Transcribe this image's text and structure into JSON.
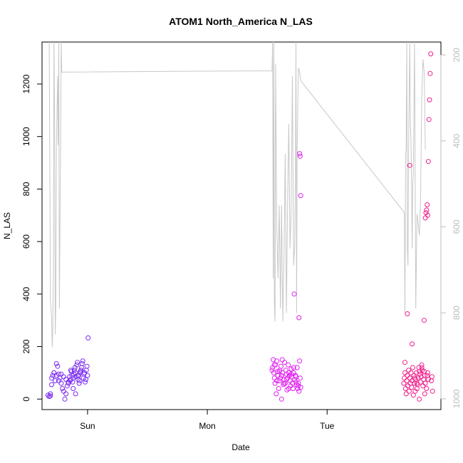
{
  "chart_data": {
    "type": "scatter",
    "title": "ATOM1 North_America N_LAS",
    "xlabel": "Date",
    "ylabel": "N_LAS",
    "x_ticks": [
      "Sun",
      "Mon",
      "Tue"
    ],
    "y_ticks": [
      "0",
      "200",
      "400",
      "600",
      "800",
      "1000",
      "1200"
    ],
    "y2_ticks": [
      "200",
      "400",
      "600",
      "800",
      "1000"
    ],
    "xlim": [
      -0.38,
      2.95
    ],
    "ylim": [
      -40,
      1360
    ],
    "y2lim": [
      1025,
      170
    ],
    "y2_reversed": true,
    "grid": false,
    "colors": {
      "line": "#c8c8c8",
      "axis_right": "#bdbdbd",
      "day1_points": "#7b2cf0",
      "day2_points": "#e020f0",
      "day3_points": "#f0208c"
    },
    "line_series": {
      "axis": "right",
      "x": [
        -0.32,
        -0.31,
        -0.3,
        -0.295,
        -0.29,
        -0.285,
        -0.28,
        -0.275,
        -0.27,
        -0.265,
        -0.26,
        -0.25,
        -0.245,
        -0.24,
        -0.235,
        -0.23,
        -0.225,
        -0.22,
        -0.215,
        1.54,
        1.545,
        1.55,
        1.555,
        1.56,
        1.565,
        1.57,
        1.58,
        1.59,
        1.6,
        1.61,
        1.62,
        1.63,
        1.64,
        1.65,
        1.66,
        1.67,
        1.68,
        1.69,
        1.7,
        1.71,
        1.72,
        1.73,
        1.735,
        1.74,
        1.745,
        1.75,
        1.76,
        1.77,
        1.78,
        2.64,
        2.645,
        2.65,
        2.655,
        2.66,
        2.665,
        2.67,
        2.675,
        2.68,
        2.69,
        2.695,
        2.7,
        2.705,
        2.71,
        2.715,
        2.72,
        2.73,
        2.74,
        2.75,
        2.76,
        2.77,
        2.78,
        2.79,
        2.8,
        2.81,
        2.82
      ],
      "y": [
        170,
        770,
        810,
        880,
        840,
        690,
        170,
        360,
        850,
        790,
        410,
        250,
        410,
        170,
        790,
        590,
        420,
        170,
        240,
        237,
        170,
        720,
        170,
        780,
        820,
        220,
        600,
        720,
        550,
        790,
        550,
        820,
        670,
        430,
        800,
        550,
        360,
        650,
        560,
        250,
        690,
        640,
        480,
        170,
        800,
        420,
        230,
        240,
        260,
        565,
        570,
        800,
        430,
        420,
        170,
        650,
        690,
        420,
        170,
        360,
        400,
        500,
        650,
        500,
        480,
        170,
        790,
        570,
        590,
        620,
        540,
        300,
        210,
        240,
        420
      ]
    },
    "series": [
      {
        "x": [
          -0.33,
          -0.32,
          -0.31,
          -0.3,
          -0.29,
          -0.28,
          -0.27,
          -0.26,
          -0.25,
          -0.24,
          -0.23,
          -0.22,
          -0.21,
          -0.2,
          -0.19,
          -0.18,
          -0.17,
          -0.16,
          -0.15,
          -0.145,
          -0.14,
          -0.135,
          -0.13,
          -0.125,
          -0.12,
          -0.115,
          -0.11,
          -0.105,
          -0.1,
          -0.095,
          -0.09,
          -0.085,
          -0.08,
          -0.075,
          -0.07,
          -0.065,
          -0.06,
          -0.055,
          -0.05,
          -0.045,
          -0.04,
          -0.035,
          -0.03,
          -0.025,
          -0.02,
          -0.015,
          -0.01,
          -0.005,
          0.0,
          0.005,
          -0.3,
          -0.31,
          -0.28,
          -0.26,
          -0.24,
          -0.22,
          -0.2,
          -0.18,
          -0.16,
          -0.14,
          -0.12,
          -0.1,
          -0.08,
          -0.06
        ],
        "y": [
          15,
          10,
          20,
          55,
          90,
          100,
          70,
          135,
          125,
          95,
          80,
          60,
          40,
          30,
          0,
          20,
          50,
          65,
          85,
          70,
          75,
          105,
          90,
          65,
          80,
          95,
          110,
          120,
          100,
          85,
          130,
          140,
          75,
          90,
          60,
          70,
          100,
          110,
          120,
          135,
          145,
          80,
          95,
          100,
          65,
          75,
          110,
          125,
          90,
          233,
          80,
          12,
          100,
          90,
          70,
          95,
          85,
          75,
          60,
          110,
          40,
          20,
          90,
          105
        ]
      },
      {
        "x": [
          1.54,
          1.545,
          1.55,
          1.555,
          1.56,
          1.565,
          1.57,
          1.575,
          1.58,
          1.585,
          1.59,
          1.595,
          1.6,
          1.605,
          1.61,
          1.615,
          1.62,
          1.625,
          1.63,
          1.635,
          1.64,
          1.645,
          1.65,
          1.655,
          1.66,
          1.665,
          1.67,
          1.675,
          1.68,
          1.685,
          1.69,
          1.695,
          1.7,
          1.705,
          1.71,
          1.715,
          1.72,
          1.725,
          1.73,
          1.735,
          1.74,
          1.745,
          1.75,
          1.755,
          1.76,
          1.765,
          1.77,
          1.775,
          1.78,
          1.56,
          1.58,
          1.6,
          1.62,
          1.64,
          1.66,
          1.68,
          1.7,
          1.72,
          1.74,
          1.76,
          1.765,
          1.77,
          1.775,
          1.78
        ],
        "y": [
          110,
          120,
          150,
          100,
          80,
          60,
          130,
          20,
          145,
          105,
          90,
          40,
          70,
          110,
          80,
          125,
          0,
          150,
          100,
          55,
          75,
          140,
          60,
          110,
          95,
          35,
          80,
          130,
          100,
          90,
          70,
          50,
          115,
          85,
          60,
          40,
          100,
          400,
          75,
          90,
          65,
          55,
          120,
          40,
          50,
          30,
          145,
          80,
          45,
          130,
          70,
          105,
          90,
          60,
          75,
          40,
          95,
          120,
          85,
          60,
          310,
          935,
          925,
          775
        ]
      },
      {
        "x": [
          2.64,
          2.645,
          2.65,
          2.655,
          2.66,
          2.665,
          2.67,
          2.675,
          2.68,
          2.685,
          2.69,
          2.695,
          2.7,
          2.705,
          2.71,
          2.715,
          2.72,
          2.725,
          2.73,
          2.735,
          2.74,
          2.745,
          2.75,
          2.755,
          2.76,
          2.765,
          2.77,
          2.775,
          2.78,
          2.785,
          2.79,
          2.795,
          2.8,
          2.805,
          2.81,
          2.815,
          2.82,
          2.83,
          2.835,
          2.84,
          2.845,
          2.65,
          2.67,
          2.69,
          2.71,
          2.73,
          2.75,
          2.77,
          2.79,
          2.81,
          2.815,
          2.82,
          2.825,
          2.83,
          2.835,
          2.84,
          2.845,
          2.85,
          2.855,
          2.86,
          2.865,
          2.87,
          2.875,
          2.88
        ],
        "y": [
          60,
          80,
          100,
          40,
          20,
          70,
          90,
          50,
          110,
          30,
          80,
          60,
          100,
          45,
          70,
          120,
          15,
          90,
          60,
          30,
          75,
          100,
          40,
          55,
          80,
          120,
          0,
          95,
          65,
          85,
          130,
          110,
          50,
          75,
          105,
          20,
          60,
          40,
          90,
          100,
          75,
          140,
          325,
          890,
          210,
          80,
          60,
          105,
          120,
          300,
          90,
          690,
          710,
          720,
          740,
          700,
          905,
          1065,
          1140,
          1240,
          1315,
          70,
          85,
          30
        ]
      }
    ]
  }
}
